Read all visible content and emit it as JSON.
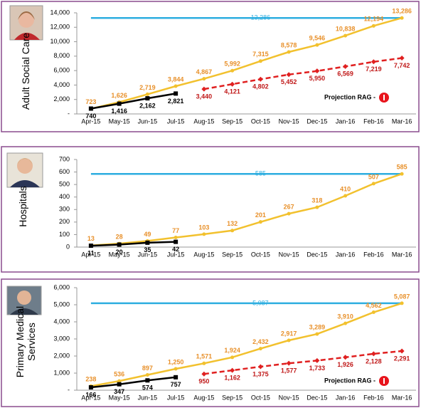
{
  "chart_data": [
    {
      "type": "line",
      "ylabel": "Adult Social Care",
      "categories": [
        "Apr-15",
        "May-15",
        "Jun-15",
        "Jul-15",
        "Aug-15",
        "Sep-15",
        "Oct-15",
        "Nov-15",
        "Dec-15",
        "Jan-16",
        "Feb-16",
        "Mar-16"
      ],
      "ylim": [
        0,
        14000
      ],
      "yticks": [
        {
          "value": 0,
          "label": "-"
        },
        {
          "value": 2000,
          "label": "2,000"
        },
        {
          "value": 4000,
          "label": "4,000"
        },
        {
          "value": 6000,
          "label": "6,000"
        },
        {
          "value": 8000,
          "label": "8,000"
        },
        {
          "value": 10000,
          "label": "10,000"
        },
        {
          "value": 12000,
          "label": "12,000"
        },
        {
          "value": 14000,
          "label": "14,000"
        }
      ],
      "annotation": "Projection RAG -",
      "series": [
        {
          "color": "#2eaee0",
          "marker": "none",
          "values": [
            13286,
            13286,
            13286,
            13286,
            13286,
            13286,
            13286,
            13286,
            13286,
            13286,
            13286,
            13286
          ],
          "value_labels": [
            null,
            null,
            null,
            null,
            null,
            null,
            "13,286",
            null,
            null,
            null,
            null,
            null
          ]
        },
        {
          "color": "#f2c12e",
          "label_color": "#e8902a",
          "marker": "circle",
          "values": [
            723,
            1626,
            2719,
            3844,
            4867,
            5992,
            7315,
            8578,
            9546,
            10838,
            12194,
            13286
          ],
          "value_labels": [
            "723",
            "1,626",
            "2,719",
            "3,844",
            "4,867",
            "5,992",
            "7,315",
            "8,578",
            "9,546",
            "10,838",
            "12,194",
            "13,286"
          ]
        },
        {
          "color": "#000000",
          "marker": "square",
          "label_below": true,
          "values": [
            740,
            1416,
            2162,
            2821,
            null,
            null,
            null,
            null,
            null,
            null,
            null,
            null
          ],
          "value_labels": [
            "740",
            "1,416",
            "2,162",
            "2,821",
            null,
            null,
            null,
            null,
            null,
            null,
            null,
            null
          ]
        },
        {
          "color": "#e02020",
          "label_color": "#c01818",
          "marker": "diamond",
          "dashed": true,
          "label_below": true,
          "values": [
            null,
            null,
            null,
            null,
            3440,
            4121,
            4802,
            5452,
            5950,
            6569,
            7219,
            7742
          ],
          "value_labels": [
            null,
            null,
            null,
            null,
            "3,440",
            "4,121",
            "4,802",
            "5,452",
            "5,950",
            "6,569",
            "7,219",
            "7,742"
          ]
        }
      ]
    },
    {
      "type": "line",
      "ylabel": "Hospitals",
      "categories": [
        "Apr-15",
        "May-15",
        "Jun-15",
        "Jul-15",
        "Aug-15",
        "Sep-15",
        "Oct-15",
        "Nov-15",
        "Dec-15",
        "Jan-16",
        "Feb-16",
        "Mar-16"
      ],
      "ylim": [
        0,
        700
      ],
      "yticks": [
        0,
        100,
        200,
        300,
        400,
        500,
        600,
        700
      ],
      "series": [
        {
          "color": "#2eaee0",
          "marker": "none",
          "values": [
            585,
            585,
            585,
            585,
            585,
            585,
            585,
            585,
            585,
            585,
            585,
            585
          ],
          "value_labels": [
            null,
            null,
            null,
            null,
            null,
            null,
            "585",
            null,
            null,
            null,
            null,
            null
          ]
        },
        {
          "color": "#f2c12e",
          "label_color": "#e8902a",
          "marker": "circle",
          "values": [
            13,
            28,
            49,
            77,
            103,
            132,
            201,
            267,
            318,
            410,
            507,
            585
          ]
        },
        {
          "color": "#000000",
          "marker": "square",
          "label_below": true,
          "values": [
            11,
            20,
            35,
            42,
            null,
            null,
            null,
            null,
            null,
            null,
            null,
            null
          ]
        }
      ]
    },
    {
      "type": "line",
      "ylabel": "Primary Medical Services",
      "categories": [
        "Apr-15",
        "May-15",
        "Jun-15",
        "Jul-15",
        "Aug-15",
        "Sep-15",
        "Oct-15",
        "Nov-15",
        "Dec-15",
        "Jan-16",
        "Feb-16",
        "Mar-16"
      ],
      "ylim": [
        0,
        6000
      ],
      "yticks": [
        {
          "value": 0,
          "label": "-"
        },
        {
          "value": 1000,
          "label": "1,000"
        },
        {
          "value": 2000,
          "label": "2,000"
        },
        {
          "value": 3000,
          "label": "3,000"
        },
        {
          "value": 4000,
          "label": "4,000"
        },
        {
          "value": 5000,
          "label": "5,000"
        },
        {
          "value": 6000,
          "label": "6,000"
        }
      ],
      "annotation": "Projection RAG -",
      "series": [
        {
          "color": "#2eaee0",
          "marker": "none",
          "values": [
            5087,
            5087,
            5087,
            5087,
            5087,
            5087,
            5087,
            5087,
            5087,
            5087,
            5087,
            5087
          ],
          "value_labels": [
            null,
            null,
            null,
            null,
            null,
            null,
            "5,087",
            null,
            null,
            null,
            null,
            null
          ]
        },
        {
          "color": "#f2c12e",
          "label_color": "#e8902a",
          "marker": "circle",
          "values": [
            238,
            536,
            897,
            1250,
            1571,
            1924,
            2432,
            2917,
            3289,
            3910,
            4562,
            5087
          ],
          "value_labels": [
            "238",
            "536",
            "897",
            "1,250",
            "1,571",
            "1,924",
            "2,432",
            "2,917",
            "3,289",
            "3,910",
            "4,562",
            "5,087"
          ]
        },
        {
          "color": "#000000",
          "marker": "square",
          "label_below": true,
          "values": [
            166,
            347,
            574,
            757,
            null,
            null,
            null,
            null,
            null,
            null,
            null,
            null
          ]
        },
        {
          "color": "#e02020",
          "label_color": "#c01818",
          "marker": "diamond",
          "dashed": true,
          "label_below": true,
          "values": [
            null,
            null,
            null,
            null,
            950,
            1162,
            1375,
            1577,
            1733,
            1926,
            2128,
            2291
          ],
          "value_labels": [
            null,
            null,
            null,
            null,
            "950",
            "1,162",
            "1,375",
            "1,577",
            "1,733",
            "1,926",
            "2,128",
            "2,291"
          ]
        }
      ]
    }
  ]
}
